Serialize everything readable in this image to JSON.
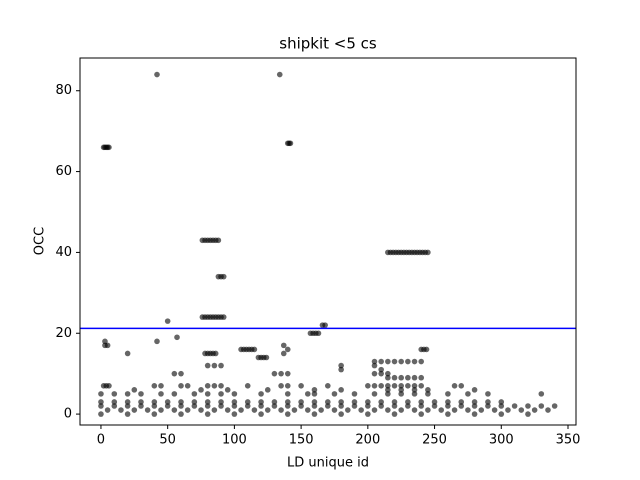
{
  "chart_data": {
    "type": "scatter",
    "title": "shipkit <5 cs",
    "x_label": "LD unique id",
    "y_label": "OCC",
    "x": [
      2,
      3,
      4,
      5,
      6,
      42,
      134,
      140,
      141,
      142,
      76,
      78,
      80,
      82,
      84,
      86,
      88,
      88,
      90,
      92,
      76,
      78,
      80,
      82,
      84,
      86,
      88,
      90,
      92,
      215,
      217,
      219,
      221,
      223,
      225,
      227,
      229,
      231,
      233,
      235,
      237,
      239,
      241,
      243,
      245,
      50,
      166,
      168,
      157,
      159,
      161,
      163,
      57,
      3,
      42,
      3,
      5,
      137,
      105,
      107,
      109,
      111,
      113,
      115,
      140,
      240,
      242,
      244,
      20,
      78,
      80,
      82,
      84,
      86,
      137,
      118,
      120,
      122,
      124,
      205,
      210,
      215,
      220,
      225,
      230,
      235,
      240,
      80,
      85,
      90,
      180,
      205,
      180,
      210,
      55,
      60,
      130,
      135,
      140,
      205,
      210,
      215,
      215,
      220,
      225,
      230,
      235,
      240,
      2,
      4,
      6,
      40,
      45,
      60,
      65,
      80,
      85,
      90,
      110,
      135,
      140,
      150,
      170,
      200,
      205,
      210,
      215,
      220,
      225,
      230,
      235,
      240,
      265,
      270,
      25,
      75,
      95,
      125,
      160,
      180,
      215,
      225,
      235,
      245,
      280,
      0,
      10,
      20,
      30,
      45,
      55,
      70,
      80,
      90,
      100,
      120,
      140,
      155,
      160,
      175,
      190,
      205,
      215,
      225,
      235,
      245,
      260,
      275,
      290,
      330,
      0,
      10,
      20,
      30,
      40,
      50,
      60,
      70,
      80,
      90,
      100,
      110,
      120,
      130,
      140,
      150,
      160,
      170,
      180,
      190,
      200,
      210,
      220,
      230,
      240,
      250,
      260,
      270,
      280,
      290,
      300,
      0,
      10,
      20,
      30,
      40,
      50,
      60,
      70,
      80,
      90,
      100,
      110,
      120,
      130,
      140,
      150,
      160,
      170,
      180,
      190,
      200,
      210,
      220,
      230,
      240,
      250,
      260,
      270,
      280,
      290,
      300,
      310,
      320,
      330,
      340,
      5,
      15,
      25,
      35,
      45,
      55,
      65,
      75,
      85,
      95,
      105,
      115,
      125,
      135,
      145,
      155,
      165,
      175,
      185,
      195,
      205,
      215,
      225,
      235,
      245,
      255,
      265,
      275,
      285,
      295,
      305,
      315,
      325,
      335,
      0,
      20,
      40,
      60,
      80,
      100,
      120,
      140,
      160,
      180,
      200,
      220,
      240,
      260,
      280,
      300,
      320
    ],
    "y": [
      66,
      66,
      66,
      66,
      66,
      84,
      84,
      67,
      67,
      67,
      43,
      43,
      43,
      43,
      43,
      43,
      43,
      34,
      34,
      34,
      24,
      24,
      24,
      24,
      24,
      24,
      24,
      24,
      24,
      40,
      40,
      40,
      40,
      40,
      40,
      40,
      40,
      40,
      40,
      40,
      40,
      40,
      40,
      40,
      40,
      23,
      22,
      22,
      20,
      20,
      20,
      20,
      19,
      18,
      18,
      17,
      17,
      17,
      16,
      16,
      16,
      16,
      16,
      16,
      16,
      16,
      16,
      16,
      15,
      15,
      15,
      15,
      15,
      15,
      15,
      14,
      14,
      14,
      14,
      13,
      13,
      13,
      13,
      13,
      13,
      13,
      13,
      12,
      12,
      12,
      12,
      12,
      11,
      11,
      10,
      10,
      10,
      10,
      10,
      10,
      10,
      10,
      9,
      9,
      9,
      9,
      9,
      9,
      7,
      7,
      7,
      7,
      7,
      7,
      7,
      7,
      7,
      7,
      7,
      7,
      7,
      7,
      7,
      7,
      7,
      7,
      7,
      7,
      7,
      7,
      7,
      7,
      7,
      7,
      6,
      6,
      6,
      6,
      6,
      6,
      6,
      6,
      6,
      6,
      6,
      5,
      5,
      5,
      5,
      5,
      5,
      5,
      5,
      5,
      5,
      5,
      5,
      5,
      5,
      5,
      5,
      5,
      5,
      5,
      5,
      5,
      5,
      5,
      5,
      5,
      3,
      3,
      3,
      3,
      3,
      3,
      3,
      3,
      3,
      3,
      3,
      3,
      3,
      3,
      3,
      3,
      3,
      3,
      3,
      3,
      3,
      3,
      3,
      3,
      3,
      3,
      3,
      3,
      3,
      3,
      3,
      2,
      2,
      2,
      2,
      2,
      2,
      2,
      2,
      2,
      2,
      2,
      2,
      2,
      2,
      2,
      2,
      2,
      2,
      2,
      2,
      2,
      2,
      2,
      2,
      2,
      2,
      2,
      2,
      2,
      2,
      2,
      2,
      2,
      2,
      2,
      1,
      1,
      1,
      1,
      1,
      1,
      1,
      1,
      1,
      1,
      1,
      1,
      1,
      1,
      1,
      1,
      1,
      1,
      1,
      1,
      1,
      1,
      1,
      1,
      1,
      1,
      1,
      1,
      1,
      1,
      1,
      1,
      1,
      1,
      0,
      0,
      0,
      0,
      0,
      0,
      0,
      0,
      0,
      0,
      0,
      0,
      0,
      0,
      0,
      0,
      0
    ],
    "color": "#000000",
    "hline": {
      "y": 21.2,
      "color": "#0000ff"
    },
    "xlim": [
      -15.7,
      356
    ],
    "ylim": [
      -2.7,
      88.1
    ],
    "xticks": [
      0,
      50,
      100,
      150,
      200,
      250,
      300,
      350
    ],
    "yticks": [
      0,
      20,
      40,
      60,
      80
    ]
  }
}
